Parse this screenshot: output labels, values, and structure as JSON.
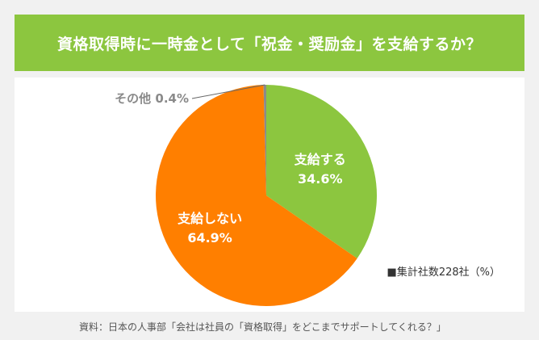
{
  "title": "資格取得時に一時金として「祝金・奨励金」を支給するか？",
  "colors": {
    "title_bar": "#8cc63f",
    "background": "#f1f1f1",
    "panel": "#ffffff"
  },
  "note": "■集計社数228社（%）",
  "source": "資料：日本の人事部「会社は社員の「資格取得」をどこまでサポートしてくれる？」",
  "chart_data": {
    "type": "pie",
    "slices": [
      {
        "label": "支給する",
        "value": 34.6,
        "value_label": "34.6%",
        "color": "#8cc63f"
      },
      {
        "label": "支給しない",
        "value": 64.9,
        "value_label": "64.9%",
        "color": "#ff7f00"
      },
      {
        "label": "その他",
        "value": 0.4,
        "value_label": "0.4%",
        "color": "#8a8a8a"
      }
    ],
    "start_angle": "12 o'clock, clockwise"
  }
}
